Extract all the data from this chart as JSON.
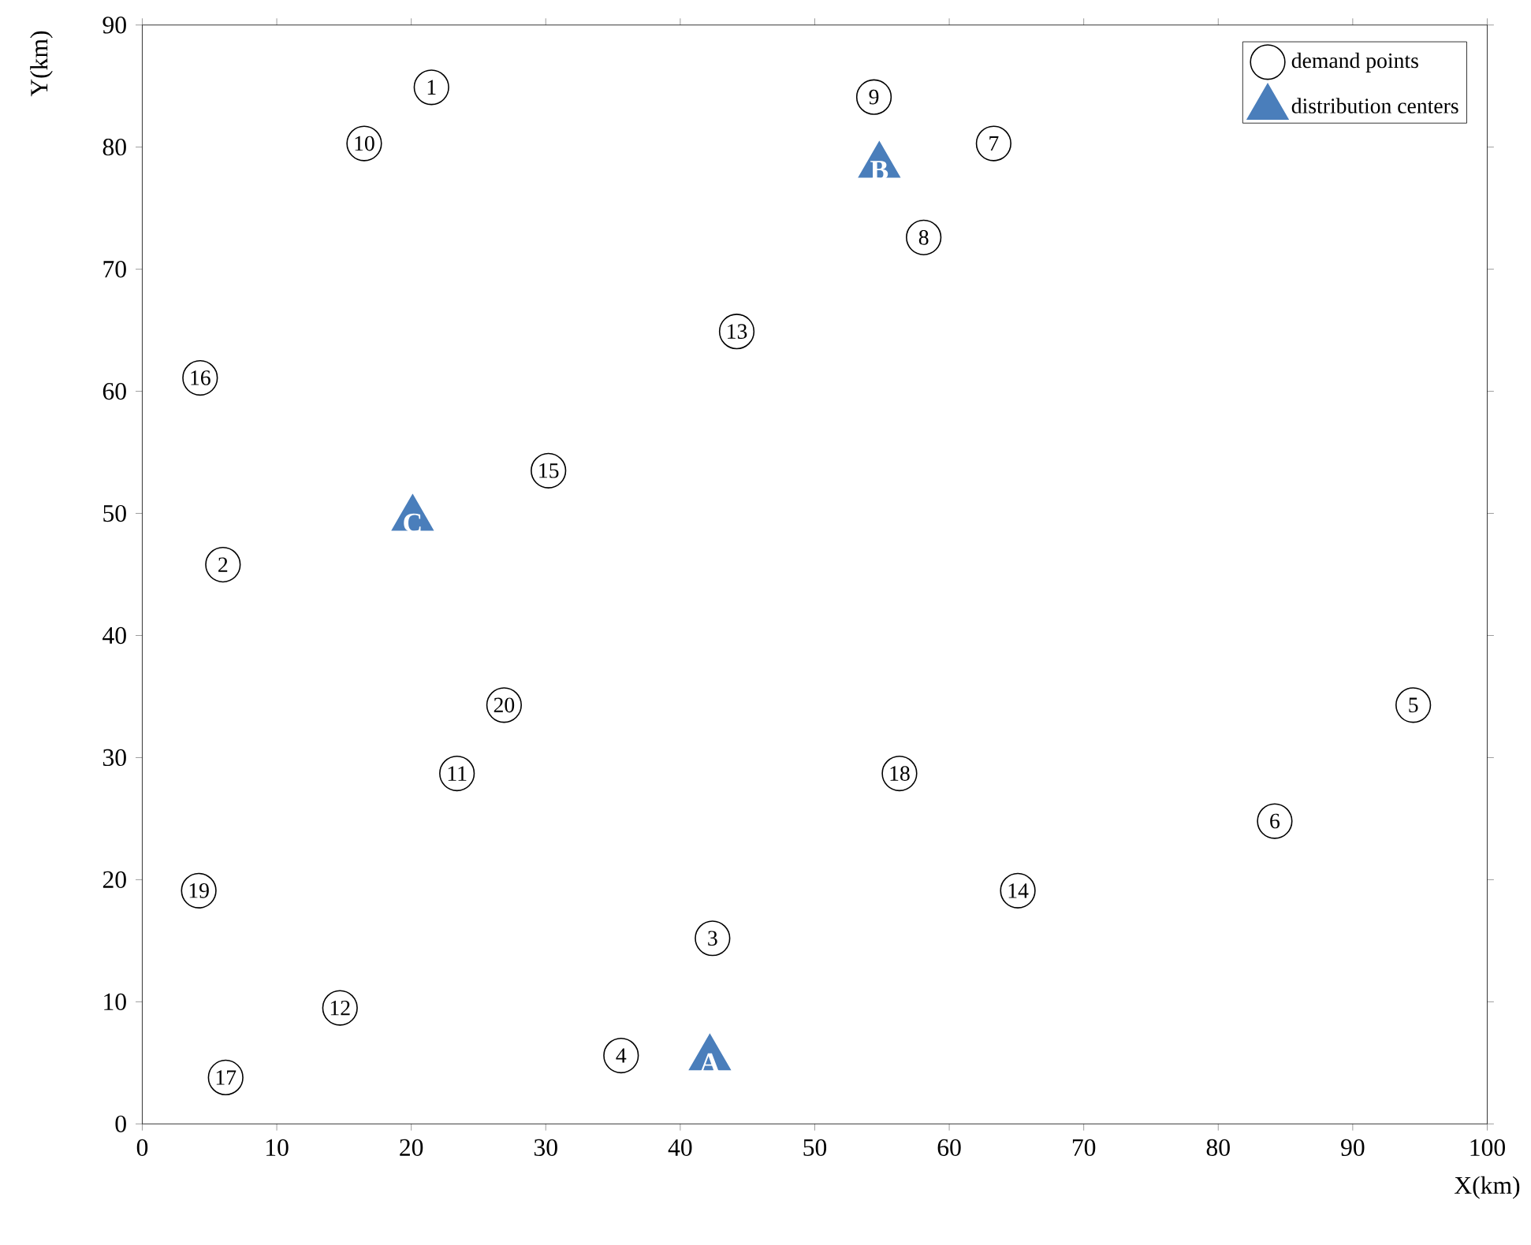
{
  "chart_data": {
    "type": "scatter",
    "xlabel": "X(km)",
    "ylabel": "Y(km)",
    "xlim": [
      0,
      100
    ],
    "ylim": [
      0,
      90
    ],
    "xticks": [
      0,
      10,
      20,
      30,
      40,
      50,
      60,
      70,
      80,
      90,
      100
    ],
    "yticks": [
      0,
      10,
      20,
      30,
      40,
      50,
      60,
      70,
      80,
      90
    ],
    "legend": "top right",
    "series": [
      {
        "name": "demand points",
        "color": "#000000",
        "marker": "circle",
        "x": [
          21.5,
          6.0,
          42.4,
          35.6,
          94.5,
          84.2,
          63.3,
          58.1,
          54.4,
          16.5,
          23.4,
          14.7,
          44.2,
          65.1,
          30.2,
          4.3,
          6.2,
          56.3,
          4.2,
          26.9
        ],
        "values": [
          84.9,
          45.8,
          15.2,
          5.6,
          34.3,
          24.8,
          80.3,
          72.6,
          84.1,
          80.3,
          28.7,
          9.5,
          64.9,
          19.1,
          53.5,
          61.1,
          3.8,
          28.7,
          19.1,
          34.3
        ]
      },
      {
        "name": "distribution centers",
        "color": "#4a7ebb",
        "marker": "triangle",
        "x": [
          42.2,
          54.8,
          20.1
        ],
        "values": [
          5.4,
          78.5,
          49.6
        ]
      }
    ],
    "annotations": [
      {
        "text": "1",
        "x": 21.5,
        "y": 84.9
      },
      {
        "text": "2",
        "x": 6.0,
        "y": 45.8
      },
      {
        "text": "3",
        "x": 42.4,
        "y": 15.2
      },
      {
        "text": "4",
        "x": 35.6,
        "y": 5.6
      },
      {
        "text": "5",
        "x": 94.5,
        "y": 34.3
      },
      {
        "text": "6",
        "x": 84.2,
        "y": 24.8
      },
      {
        "text": "7",
        "x": 63.3,
        "y": 80.3
      },
      {
        "text": "8",
        "x": 58.1,
        "y": 72.6
      },
      {
        "text": "9",
        "x": 54.4,
        "y": 84.1
      },
      {
        "text": "10",
        "x": 16.5,
        "y": 80.3
      },
      {
        "text": "11",
        "x": 23.4,
        "y": 28.7
      },
      {
        "text": "12",
        "x": 14.7,
        "y": 9.5
      },
      {
        "text": "13",
        "x": 44.2,
        "y": 64.9
      },
      {
        "text": "14",
        "x": 65.1,
        "y": 19.1
      },
      {
        "text": "15",
        "x": 30.2,
        "y": 53.5
      },
      {
        "text": "16",
        "x": 4.3,
        "y": 61.1
      },
      {
        "text": "17",
        "x": 6.2,
        "y": 3.8
      },
      {
        "text": "18",
        "x": 56.3,
        "y": 28.7
      },
      {
        "text": "19",
        "x": 4.2,
        "y": 19.1
      },
      {
        "text": "20",
        "x": 26.9,
        "y": 34.3
      },
      {
        "text": "A",
        "x": 42.2,
        "y": 5.4
      },
      {
        "text": "B",
        "x": 54.8,
        "y": 78.5
      },
      {
        "text": "C",
        "x": 20.1,
        "y": 49.6
      }
    ]
  }
}
